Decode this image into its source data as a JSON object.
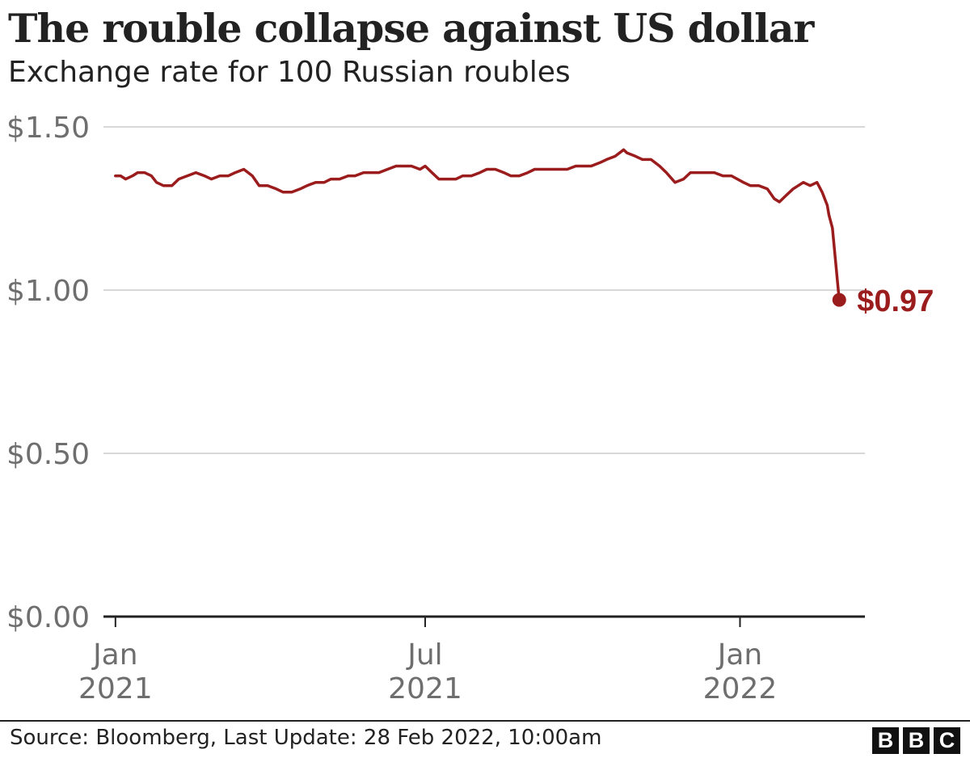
{
  "header": {
    "title": "The rouble collapse against US dollar",
    "subtitle": "Exchange rate for 100 Russian roubles"
  },
  "footer": {
    "source": "Source: Bloomberg, Last Update: 28 Feb 2022, 10:00am",
    "logo": [
      "B",
      "B",
      "C"
    ]
  },
  "colors": {
    "line": "#9b1c1c",
    "grid": "#cccccc",
    "text": "#222222",
    "axis_text": "#6e6e6e"
  },
  "chart_data": {
    "type": "line",
    "title": "The rouble collapse against US dollar",
    "subtitle": "Exchange rate for 100 Russian roubles",
    "xlabel": "",
    "ylabel": "",
    "ylim": [
      0,
      1.5
    ],
    "xlim": [
      "2020-12-25",
      "2022-03-15"
    ],
    "grid": true,
    "y_ticks": [
      {
        "value": 0,
        "label": "$0.00"
      },
      {
        "value": 0.5,
        "label": "$0.50"
      },
      {
        "value": 1.0,
        "label": "$1.00"
      },
      {
        "value": 1.5,
        "label": "$1.50"
      }
    ],
    "x_ticks": [
      {
        "date": "2021-01-01",
        "label_top": "Jan",
        "label_bottom": "2021"
      },
      {
        "date": "2021-07-01",
        "label_top": "Jul",
        "label_bottom": "2021"
      },
      {
        "date": "2022-01-01",
        "label_top": "Jan",
        "label_bottom": "2022"
      }
    ],
    "end_label": "$0.97",
    "series": [
      {
        "name": "",
        "points": [
          [
            "2021-01-01",
            1.35
          ],
          [
            "2021-01-04",
            1.35
          ],
          [
            "2021-01-07",
            1.34
          ],
          [
            "2021-01-11",
            1.35
          ],
          [
            "2021-01-14",
            1.36
          ],
          [
            "2021-01-18",
            1.36
          ],
          [
            "2021-01-22",
            1.35
          ],
          [
            "2021-01-25",
            1.33
          ],
          [
            "2021-01-29",
            1.32
          ],
          [
            "2021-02-03",
            1.32
          ],
          [
            "2021-02-07",
            1.34
          ],
          [
            "2021-02-12",
            1.35
          ],
          [
            "2021-02-17",
            1.36
          ],
          [
            "2021-02-22",
            1.35
          ],
          [
            "2021-02-26",
            1.34
          ],
          [
            "2021-03-03",
            1.35
          ],
          [
            "2021-03-08",
            1.35
          ],
          [
            "2021-03-12",
            1.36
          ],
          [
            "2021-03-17",
            1.37
          ],
          [
            "2021-03-22",
            1.35
          ],
          [
            "2021-03-26",
            1.32
          ],
          [
            "2021-03-31",
            1.32
          ],
          [
            "2021-04-05",
            1.31
          ],
          [
            "2021-04-09",
            1.3
          ],
          [
            "2021-04-14",
            1.3
          ],
          [
            "2021-04-19",
            1.31
          ],
          [
            "2021-04-23",
            1.32
          ],
          [
            "2021-04-28",
            1.33
          ],
          [
            "2021-05-03",
            1.33
          ],
          [
            "2021-05-07",
            1.34
          ],
          [
            "2021-05-12",
            1.34
          ],
          [
            "2021-05-17",
            1.35
          ],
          [
            "2021-05-21",
            1.35
          ],
          [
            "2021-05-26",
            1.36
          ],
          [
            "2021-05-31",
            1.36
          ],
          [
            "2021-06-04",
            1.36
          ],
          [
            "2021-06-09",
            1.37
          ],
          [
            "2021-06-14",
            1.38
          ],
          [
            "2021-06-18",
            1.38
          ],
          [
            "2021-06-23",
            1.38
          ],
          [
            "2021-06-28",
            1.37
          ],
          [
            "2021-07-01",
            1.38
          ],
          [
            "2021-07-05",
            1.36
          ],
          [
            "2021-07-09",
            1.34
          ],
          [
            "2021-07-14",
            1.34
          ],
          [
            "2021-07-19",
            1.34
          ],
          [
            "2021-07-23",
            1.35
          ],
          [
            "2021-07-28",
            1.35
          ],
          [
            "2021-08-02",
            1.36
          ],
          [
            "2021-08-06",
            1.37
          ],
          [
            "2021-08-11",
            1.37
          ],
          [
            "2021-08-16",
            1.36
          ],
          [
            "2021-08-20",
            1.35
          ],
          [
            "2021-08-25",
            1.35
          ],
          [
            "2021-08-30",
            1.36
          ],
          [
            "2021-09-03",
            1.37
          ],
          [
            "2021-09-08",
            1.37
          ],
          [
            "2021-09-13",
            1.37
          ],
          [
            "2021-09-17",
            1.37
          ],
          [
            "2021-09-22",
            1.37
          ],
          [
            "2021-09-27",
            1.38
          ],
          [
            "2021-10-01",
            1.38
          ],
          [
            "2021-10-06",
            1.38
          ],
          [
            "2021-10-11",
            1.39
          ],
          [
            "2021-10-15",
            1.4
          ],
          [
            "2021-10-20",
            1.41
          ],
          [
            "2021-10-25",
            1.43
          ],
          [
            "2021-10-27",
            1.42
          ],
          [
            "2021-11-01",
            1.41
          ],
          [
            "2021-11-05",
            1.4
          ],
          [
            "2021-11-10",
            1.4
          ],
          [
            "2021-11-15",
            1.38
          ],
          [
            "2021-11-19",
            1.36
          ],
          [
            "2021-11-24",
            1.33
          ],
          [
            "2021-11-29",
            1.34
          ],
          [
            "2021-12-03",
            1.36
          ],
          [
            "2021-12-08",
            1.36
          ],
          [
            "2021-12-13",
            1.36
          ],
          [
            "2021-12-17",
            1.36
          ],
          [
            "2021-12-22",
            1.35
          ],
          [
            "2021-12-27",
            1.35
          ],
          [
            "2022-01-03",
            1.33
          ],
          [
            "2022-01-07",
            1.32
          ],
          [
            "2022-01-12",
            1.32
          ],
          [
            "2022-01-17",
            1.31
          ],
          [
            "2022-01-21",
            1.28
          ],
          [
            "2022-01-24",
            1.27
          ],
          [
            "2022-01-28",
            1.29
          ],
          [
            "2022-02-01",
            1.31
          ],
          [
            "2022-02-07",
            1.33
          ],
          [
            "2022-02-11",
            1.32
          ],
          [
            "2022-02-15",
            1.33
          ],
          [
            "2022-02-18",
            1.3
          ],
          [
            "2022-02-21",
            1.26
          ],
          [
            "2022-02-22",
            1.23
          ],
          [
            "2022-02-24",
            1.19
          ],
          [
            "2022-02-28",
            0.97
          ]
        ]
      }
    ]
  }
}
